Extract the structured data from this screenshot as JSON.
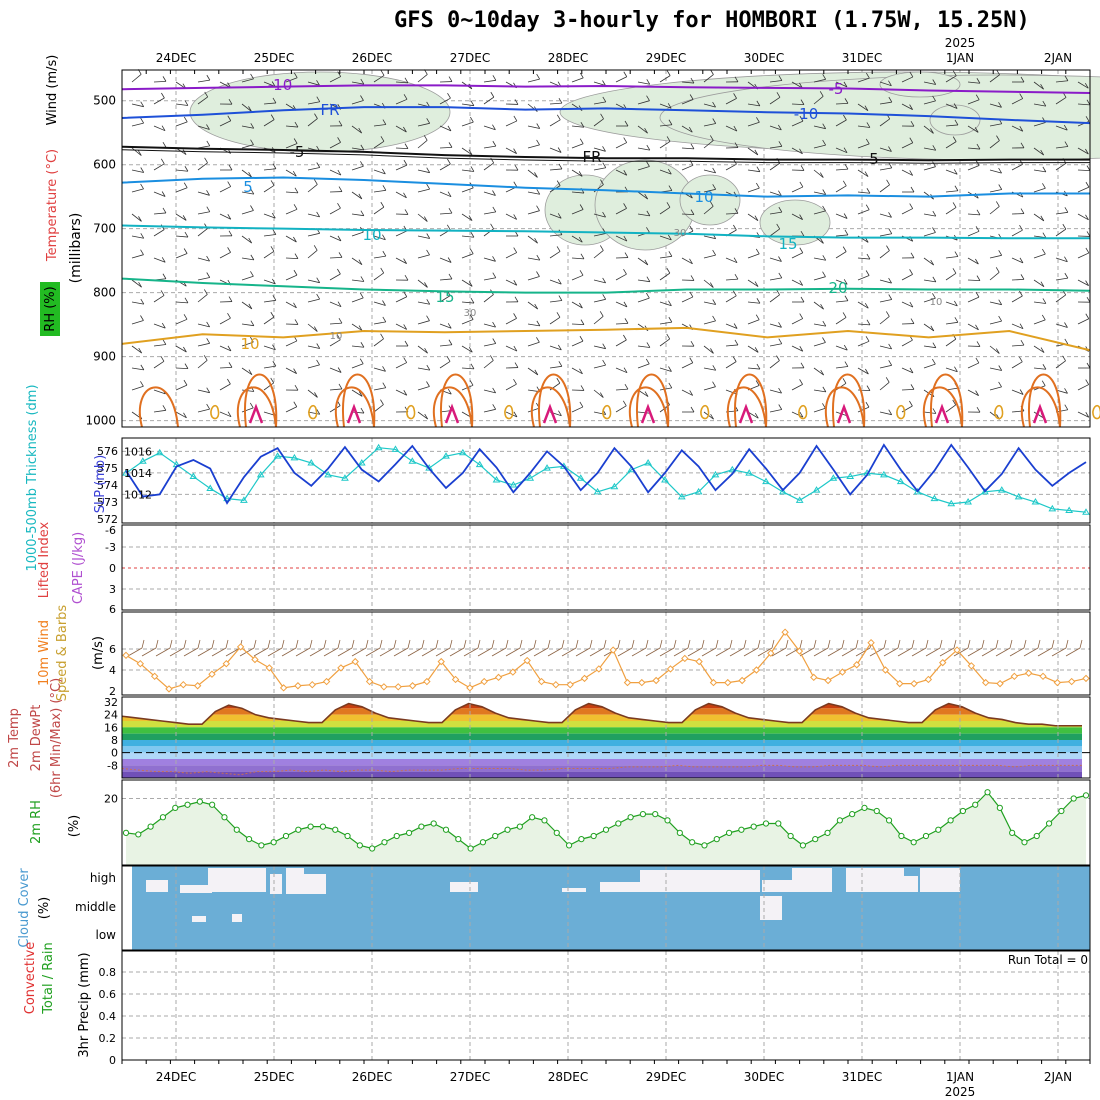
{
  "title": "GFS 0~10day 3-hourly for HOMBORI (1.75W, 15.25N)",
  "date_labels": [
    "24DEC",
    "25DEC",
    "26DEC",
    "27DEC",
    "28DEC",
    "29DEC",
    "30DEC",
    "31DEC",
    "1JAN",
    "2JAN"
  ],
  "year_label": "2025",
  "chart_data": [
    {
      "type": "line",
      "panel": "upper-air cross section",
      "ylabel": "(millibars)",
      "yticks": [
        500,
        600,
        700,
        800,
        900,
        1000
      ],
      "side_labels": {
        "wind": "Wind (m/s)",
        "temperature": "Temperature (°C)",
        "rh": "RH (%)"
      },
      "isotherms": [
        {
          "name": "-10",
          "values": [
            482,
            480,
            478,
            476,
            476,
            478,
            477,
            479,
            480,
            481,
            484,
            486,
            488
          ]
        },
        {
          "name": "-5",
          "values": [
            527,
            522,
            515,
            510,
            510,
            514,
            512,
            515,
            518,
            520,
            524,
            530,
            535
          ]
        },
        {
          "name": "FR",
          "values": [
            572,
            575,
            577,
            580,
            585,
            588,
            590,
            590,
            592,
            592,
            593,
            592,
            592
          ]
        },
        {
          "name": "5",
          "values": [
            628,
            622,
            620,
            624,
            630,
            636,
            640,
            645,
            650,
            648,
            650,
            645,
            645
          ]
        },
        {
          "name": "10",
          "values": [
            695,
            698,
            700,
            702,
            703,
            704,
            706,
            708,
            712,
            714,
            714,
            715,
            715
          ]
        },
        {
          "name": "15",
          "values": [
            778,
            785,
            790,
            795,
            798,
            800,
            800,
            795,
            795,
            794,
            795,
            795,
            797
          ]
        },
        {
          "name": "20",
          "values": [
            880,
            865,
            870,
            860,
            862,
            860,
            858,
            855,
            870,
            860,
            870,
            860,
            890
          ]
        }
      ],
      "contour_labels": [
        "-10",
        "-5",
        "FR",
        "-10",
        "-5",
        "FR",
        "5",
        "5",
        "10",
        "10",
        "15",
        "15",
        "20",
        "10",
        "10",
        "30",
        "30",
        "10"
      ]
    },
    {
      "type": "line",
      "panel": "thickness and sea level pressure",
      "labels": {
        "thickness": "1000-500mb Thickness (dm)",
        "slp": "SLP (mb)"
      },
      "left_ticks": [
        572,
        573,
        574,
        575,
        576
      ],
      "right_ticks": [
        1012,
        1014,
        1016
      ],
      "series": [
        {
          "name": "SLP (mb)",
          "values": [
            1014.2,
            1011.8,
            1012.0,
            1014.6,
            1015.2,
            1014.4,
            1011.2,
            1013.6,
            1015.5,
            1016.3,
            1014.0,
            1012.8,
            1014.4,
            1016.4,
            1014.3,
            1013.2,
            1014.8,
            1016.5,
            1014.4,
            1012.6,
            1014.0,
            1016.2,
            1014.5,
            1012.2,
            1014.0,
            1016.0,
            1014.6,
            1012.4,
            1014.0,
            1016.3,
            1014.6,
            1012.2,
            1014.0,
            1016.1,
            1014.6,
            1012.4,
            1013.9,
            1016.2,
            1014.4,
            1012.4,
            1014.0,
            1016.5,
            1014.3,
            1012.0,
            1013.8,
            1016.6,
            1014.3,
            1012.3,
            1014.2,
            1016.6,
            1014.5,
            1012.3,
            1013.9,
            1016.3,
            1014.3,
            1012.8,
            1014.0,
            1015.0
          ]
        },
        {
          "name": "1000-500mb Thickness (dm)",
          "values": [
            574.7,
            575.4,
            575.9,
            575.2,
            574.5,
            573.8,
            573.2,
            573.1,
            574.6,
            575.7,
            575.6,
            575.3,
            574.6,
            574.4,
            575.3,
            576.2,
            576.1,
            575.4,
            575.0,
            575.7,
            575.9,
            575.2,
            574.3,
            574.0,
            574.4,
            575.0,
            575.1,
            574.4,
            573.6,
            573.9,
            574.9,
            575.3,
            574.3,
            573.3,
            573.6,
            574.6,
            574.9,
            574.7,
            574.2,
            573.6,
            573.1,
            573.7,
            574.4,
            574.5,
            574.7,
            574.6,
            574.2,
            573.6,
            573.2,
            572.9,
            573.0,
            573.6,
            573.7,
            573.3,
            573.0,
            572.6,
            572.5,
            572.4
          ]
        }
      ]
    },
    {
      "type": "line",
      "panel": "lifted index and CAPE",
      "labels": {
        "li": "Lifted Index",
        "cape": "CAPE (J/kg)"
      },
      "left_ticks": [
        "-6",
        "-3",
        "0",
        "3",
        "6"
      ],
      "series": []
    },
    {
      "type": "line",
      "panel": "10m wind",
      "labels": {
        "main": "10m Wind",
        "sub": "Speed & Barbs",
        "unit": "(m/s)"
      },
      "yticks": [
        2,
        4,
        6
      ],
      "series": [
        {
          "name": "10m Wind Speed",
          "values": [
            5.4,
            4.6,
            3.4,
            2.2,
            2.6,
            2.5,
            3.6,
            4.6,
            6.2,
            5.0,
            4.2,
            2.3,
            2.5,
            2.6,
            2.9,
            4.2,
            4.8,
            2.9,
            2.4,
            2.4,
            2.5,
            2.9,
            4.8,
            3.1,
            2.3,
            2.9,
            3.3,
            3.8,
            4.9,
            2.9,
            2.6,
            2.6,
            3.2,
            4.1,
            5.9,
            2.8,
            2.8,
            3.0,
            4.1,
            5.1,
            4.8,
            2.8,
            2.8,
            3.0,
            4.0,
            5.6,
            7.6,
            5.8,
            3.3,
            3.0,
            3.8,
            4.5,
            6.6,
            4.0,
            2.7,
            2.7,
            3.1,
            4.7,
            5.9,
            4.4,
            2.8,
            2.7,
            3.4,
            3.7,
            3.4,
            2.8,
            2.9,
            3.2
          ]
        }
      ]
    },
    {
      "type": "area",
      "panel": "2m temperature",
      "labels": {
        "a": "2m Temp",
        "b": "2m DewPt",
        "c": "(6hr Min/Max) (°C)"
      },
      "yticks": [
        32,
        24,
        16,
        8,
        0,
        -8
      ],
      "series": [
        {
          "name": "2m Temp",
          "values": [
            23,
            22,
            21,
            20,
            19,
            18,
            18,
            26,
            30,
            28,
            24,
            22,
            21,
            20,
            19,
            19,
            27,
            31,
            29,
            25,
            22,
            21,
            20,
            19,
            19,
            27,
            31,
            29,
            25,
            22,
            21,
            20,
            19,
            19,
            27,
            31,
            29,
            25,
            22,
            21,
            20,
            19,
            19,
            27,
            31,
            29,
            25,
            22,
            21,
            20,
            19,
            19,
            27,
            31,
            29,
            25,
            22,
            21,
            20,
            19,
            19,
            27,
            31,
            29,
            25,
            22,
            21,
            19,
            18,
            18,
            17,
            17,
            17
          ]
        },
        {
          "name": "2m DewPt",
          "values": [
            -10,
            -11,
            -12,
            -12,
            -13,
            -12,
            -13,
            -14,
            -12,
            -12,
            -11,
            -12,
            -11,
            -12,
            -11,
            -11,
            -12,
            -11,
            -11,
            -11,
            -10,
            -10,
            -10,
            -10,
            -11,
            -11,
            -10,
            -10,
            -10,
            -10,
            -9,
            -9,
            -9,
            -8,
            -9,
            -9,
            -9,
            -9,
            -8,
            -8,
            -9,
            -9,
            -8,
            -8,
            -8,
            -9,
            -8,
            -8,
            -8,
            -8,
            -8,
            -8,
            -8,
            -9,
            -8,
            -8,
            -8,
            -8
          ]
        }
      ]
    },
    {
      "type": "area",
      "panel": "2m RH",
      "labels": {
        "a": "2m RH",
        "b": "(%)"
      },
      "yticks": [
        20
      ],
      "series": [
        {
          "name": "2m RH",
          "values": [
            9,
            8.5,
            11,
            14,
            17,
            18,
            19,
            18,
            14,
            10,
            7,
            5,
            6,
            8,
            10,
            11,
            11,
            10,
            8,
            5,
            4,
            6,
            8,
            9,
            11,
            12,
            10,
            7,
            4,
            6,
            8,
            10,
            11,
            14,
            13,
            9,
            5,
            7,
            8,
            10,
            12,
            14,
            15,
            15,
            13,
            9,
            6,
            5,
            7,
            9,
            10,
            11,
            12,
            12,
            8,
            5,
            7,
            9,
            13,
            15,
            17,
            16,
            13,
            8,
            6,
            8,
            10,
            13,
            16,
            18,
            22,
            17,
            9,
            6,
            8,
            12,
            16,
            20,
            21
          ]
        }
      ]
    },
    {
      "type": "bar",
      "panel": "cloud cover",
      "labels": {
        "a": "Cloud Cover",
        "b": "(%)"
      },
      "layers": [
        "high",
        "middle",
        "low"
      ]
    },
    {
      "type": "bar",
      "panel": "3hr precipitation",
      "labels": {
        "a": "3hr Precip (mm)",
        "b": "Total / Rain",
        "c": "Convective"
      },
      "yticks": [
        "0",
        "0.2",
        "0.4",
        "0.6",
        "0.8"
      ],
      "run_total": "Run Total = 0",
      "values": []
    }
  ]
}
